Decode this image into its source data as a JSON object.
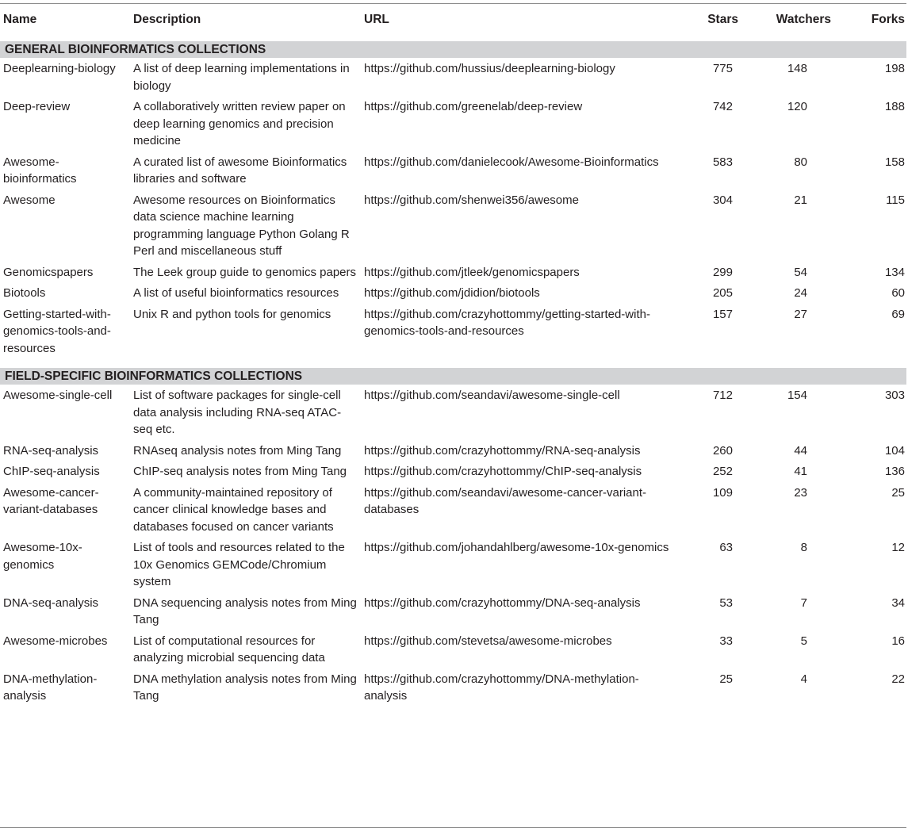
{
  "columns": {
    "name": "Name",
    "description": "Description",
    "url": "URL",
    "stars": "Stars",
    "watchers": "Watchers",
    "forks": "Forks"
  },
  "sections": [
    {
      "title": "GENERAL BIOINFORMATICS COLLECTIONS",
      "rows": [
        {
          "name": "Deeplearning-biology",
          "description": "A list of deep learning implementations in biology",
          "url": "https://github.com/hussius/deeplearning-biology",
          "stars": "775",
          "watchers": "148",
          "forks": "198"
        },
        {
          "name": "Deep-review",
          "description": "A collaboratively written review paper on deep learning genomics and precision medicine",
          "url": "https://github.com/greenelab/deep-review",
          "stars": "742",
          "watchers": "120",
          "forks": "188"
        },
        {
          "name": "Awesome-bioinformatics",
          "description": "A curated list of awesome Bioinformatics libraries and software",
          "url": "https://github.com/danielecook/Awesome-Bioinformatics",
          "stars": "583",
          "watchers": "80",
          "forks": "158"
        },
        {
          "name": "Awesome",
          "description": "Awesome resources on Bioinformatics data science machine learning programming language Python Golang R Perl and miscellaneous stuff",
          "url": "https://github.com/shenwei356/awesome",
          "stars": "304",
          "watchers": "21",
          "forks": "115"
        },
        {
          "name": "Genomicspapers",
          "description": "The Leek group guide to genomics papers",
          "url": "https://github.com/jtleek/genomicspapers",
          "stars": "299",
          "watchers": "54",
          "forks": "134"
        },
        {
          "name": "Biotools",
          "description": "A list of useful bioinformatics resources",
          "url": "https://github.com/jdidion/biotools",
          "stars": "205",
          "watchers": "24",
          "forks": "60"
        },
        {
          "name": "Getting-started-with-genomics-tools-and-resources",
          "description": "Unix R and python tools for genomics",
          "url": "https://github.com/crazyhottommy/getting-started-with-genomics-tools-and-resources",
          "stars": "157",
          "watchers": "27",
          "forks": "69"
        }
      ]
    },
    {
      "title": "FIELD-SPECIFIC BIOINFORMATICS COLLECTIONS",
      "rows": [
        {
          "name": "Awesome-single-cell",
          "description": "List of software packages for single-cell data analysis including RNA-seq ATAC-seq etc.",
          "url": "https://github.com/seandavi/awesome-single-cell",
          "stars": "712",
          "watchers": "154",
          "forks": "303"
        },
        {
          "name": "RNA-seq-analysis",
          "description": "RNAseq analysis notes from Ming Tang",
          "url": "https://github.com/crazyhottommy/RNA-seq-analysis",
          "stars": "260",
          "watchers": "44",
          "forks": "104"
        },
        {
          "name": "ChIP-seq-analysis",
          "description": "ChIP-seq analysis notes from Ming Tang",
          "url": "https://github.com/crazyhottommy/ChIP-seq-analysis",
          "stars": "252",
          "watchers": "41",
          "forks": "136"
        },
        {
          "name": "Awesome-cancer-variant-databases",
          "description": "A community-maintained repository of cancer clinical knowledge bases and databases focused on cancer variants",
          "url": "https://github.com/seandavi/awesome-cancer-variant-databases",
          "stars": "109",
          "watchers": "23",
          "forks": "25"
        },
        {
          "name": "Awesome-10x-genomics",
          "description": "List of tools and resources related to the 10x Genomics GEMCode/Chromium system",
          "url": "https://github.com/johandahlberg/awesome-10x-genomics",
          "stars": "63",
          "watchers": "8",
          "forks": "12"
        },
        {
          "name": "DNA-seq-analysis",
          "description": "DNA sequencing analysis notes from Ming Tang",
          "url": "https://github.com/crazyhottommy/DNA-seq-analysis",
          "stars": "53",
          "watchers": "7",
          "forks": "34"
        },
        {
          "name": "Awesome-microbes",
          "description": "List of computational resources for analyzing microbial sequencing data",
          "url": "https://github.com/stevetsa/awesome-microbes",
          "stars": "33",
          "watchers": "5",
          "forks": "16"
        },
        {
          "name": "DNA-methylation-analysis",
          "description": "DNA methylation analysis notes from Ming Tang",
          "url": "https://github.com/crazyhottommy/DNA-methylation-analysis",
          "stars": "25",
          "watchers": "4",
          "forks": "22"
        }
      ]
    }
  ]
}
